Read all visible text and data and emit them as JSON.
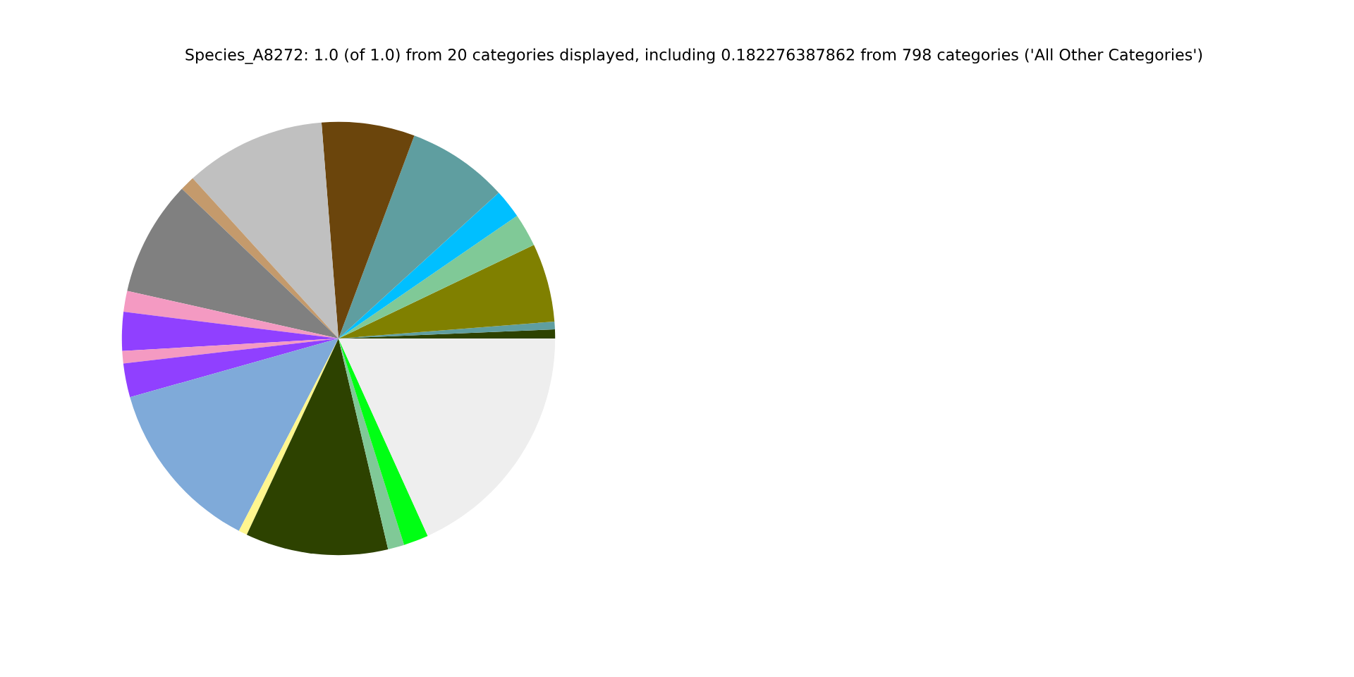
{
  "chart_data": {
    "type": "pie",
    "title": "Species_A8272: 1.0 (of 1.0) from 20 categories displayed, including 0.182276387862 from 798 categories ('All Other Categories')",
    "categories": [
      null,
      null,
      null,
      null,
      null,
      null,
      null,
      null,
      null,
      null,
      null,
      null,
      null,
      null,
      null,
      null,
      null,
      null,
      null,
      null
    ],
    "values": [
      0.67,
      0.58,
      5.86,
      2.47,
      2.17,
      7.56,
      6.94,
      10.5,
      1.11,
      8.61,
      1.56,
      2.89,
      0.92,
      2.53,
      13.03,
      0.64,
      10.64,
      1.22,
      1.86,
      18.24
    ],
    "colors": [
      "#2d4200",
      "#5f9ea0",
      "#808000",
      "#80c997",
      "#00bfff",
      "#5f9ea0",
      "#6b450c",
      "#c0c0c0",
      "#c49a6c",
      "#808080",
      "#f49ac2",
      "#9040ff",
      "#f49ac2",
      "#9040ff",
      "#7faad9",
      "#fff68f",
      "#2d4200",
      "#80c997",
      "#00ff14",
      "#eeeeee"
    ]
  }
}
